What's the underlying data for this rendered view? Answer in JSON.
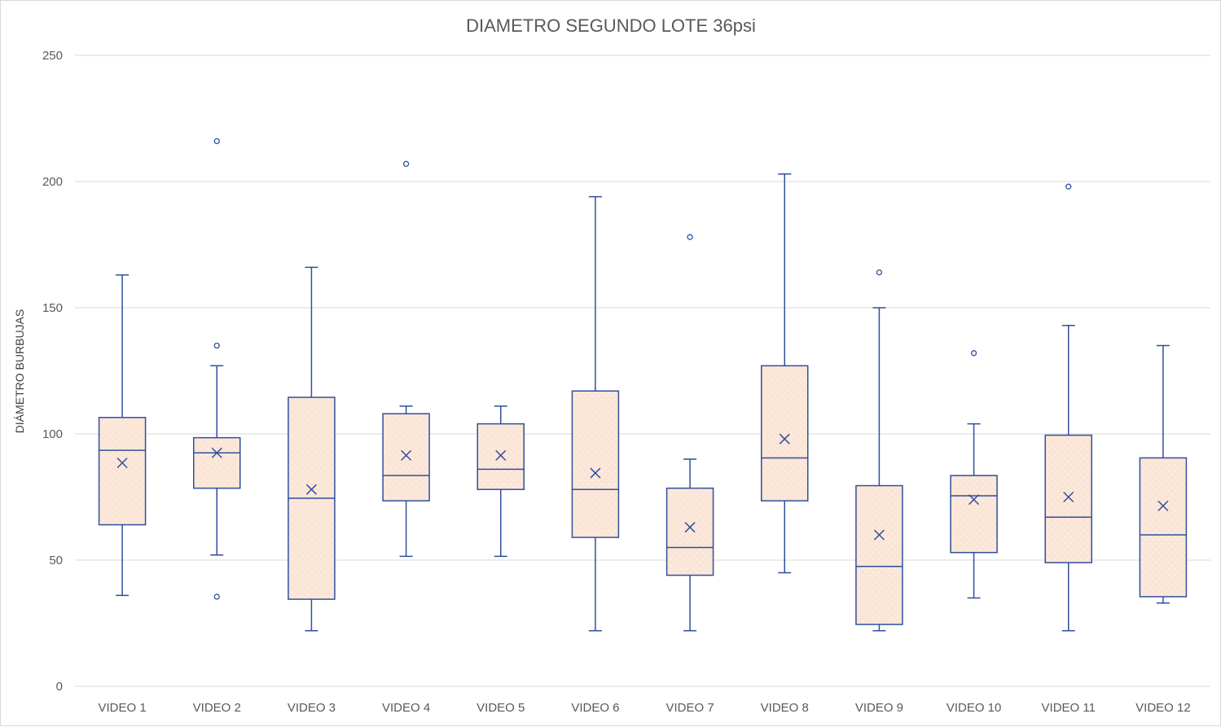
{
  "chart_data": {
    "type": "box",
    "title": "DIAMETRO SEGUNDO LOTE 36psi",
    "xlabel": "",
    "ylabel": "DIÁMETRO BURBUJAS",
    "ylim": [
      0,
      250
    ],
    "yticks": [
      0,
      50,
      100,
      150,
      200,
      250
    ],
    "grid": true,
    "legend": "none",
    "box_fill": "#fbe5d6",
    "box_stroke": "#2f4f9e",
    "grid_color": "#d9d9d9",
    "categories": [
      "VIDEO 1",
      "VIDEO 2",
      "VIDEO 3",
      "VIDEO 4",
      "VIDEO 5",
      "VIDEO 6",
      "VIDEO 7",
      "VIDEO 8",
      "VIDEO 9",
      "VIDEO 10",
      "VIDEO 11",
      "VIDEO 12"
    ],
    "boxes": [
      {
        "category": "VIDEO 1",
        "min": 36,
        "q1": 64,
        "median": 93.5,
        "q3": 106.5,
        "max": 163,
        "mean": 88.5,
        "outliers": []
      },
      {
        "category": "VIDEO 2",
        "min": 52,
        "q1": 78.5,
        "median": 92.5,
        "q3": 98.5,
        "max": 127,
        "mean": 92.5,
        "outliers": [
          216,
          135,
          35.5
        ]
      },
      {
        "category": "VIDEO 3",
        "min": 22,
        "q1": 34.5,
        "median": 74.5,
        "q3": 114.5,
        "max": 166,
        "mean": 78,
        "outliers": []
      },
      {
        "category": "VIDEO 4",
        "min": 51.5,
        "q1": 73.5,
        "median": 83.5,
        "q3": 108,
        "max": 111,
        "mean": 91.5,
        "outliers": [
          207
        ]
      },
      {
        "category": "VIDEO 5",
        "min": 51.5,
        "q1": 78,
        "median": 86,
        "q3": 104,
        "max": 111,
        "mean": 91.5,
        "outliers": []
      },
      {
        "category": "VIDEO 6",
        "min": 22,
        "q1": 59,
        "median": 78,
        "q3": 117,
        "max": 194,
        "mean": 84.5,
        "outliers": []
      },
      {
        "category": "VIDEO 7",
        "min": 22,
        "q1": 44,
        "median": 55,
        "q3": 78.5,
        "max": 90,
        "mean": 63,
        "outliers": [
          178
        ]
      },
      {
        "category": "VIDEO 8",
        "min": 45,
        "q1": 73.5,
        "median": 90.5,
        "q3": 127,
        "max": 203,
        "mean": 98,
        "outliers": []
      },
      {
        "category": "VIDEO 9",
        "min": 22,
        "q1": 24.5,
        "median": 47.5,
        "q3": 79.5,
        "max": 150,
        "mean": 60,
        "outliers": [
          164
        ]
      },
      {
        "category": "VIDEO 10",
        "min": 35,
        "q1": 53,
        "median": 75.5,
        "q3": 83.5,
        "max": 104,
        "mean": 74,
        "outliers": [
          132
        ]
      },
      {
        "category": "VIDEO 11",
        "min": 22,
        "q1": 49,
        "median": 67,
        "q3": 99.5,
        "max": 143,
        "mean": 75,
        "outliers": [
          198
        ]
      },
      {
        "category": "VIDEO 12",
        "min": 33,
        "q1": 35.5,
        "median": 60,
        "q3": 90.5,
        "max": 135,
        "mean": 71.5,
        "outliers": []
      }
    ]
  }
}
